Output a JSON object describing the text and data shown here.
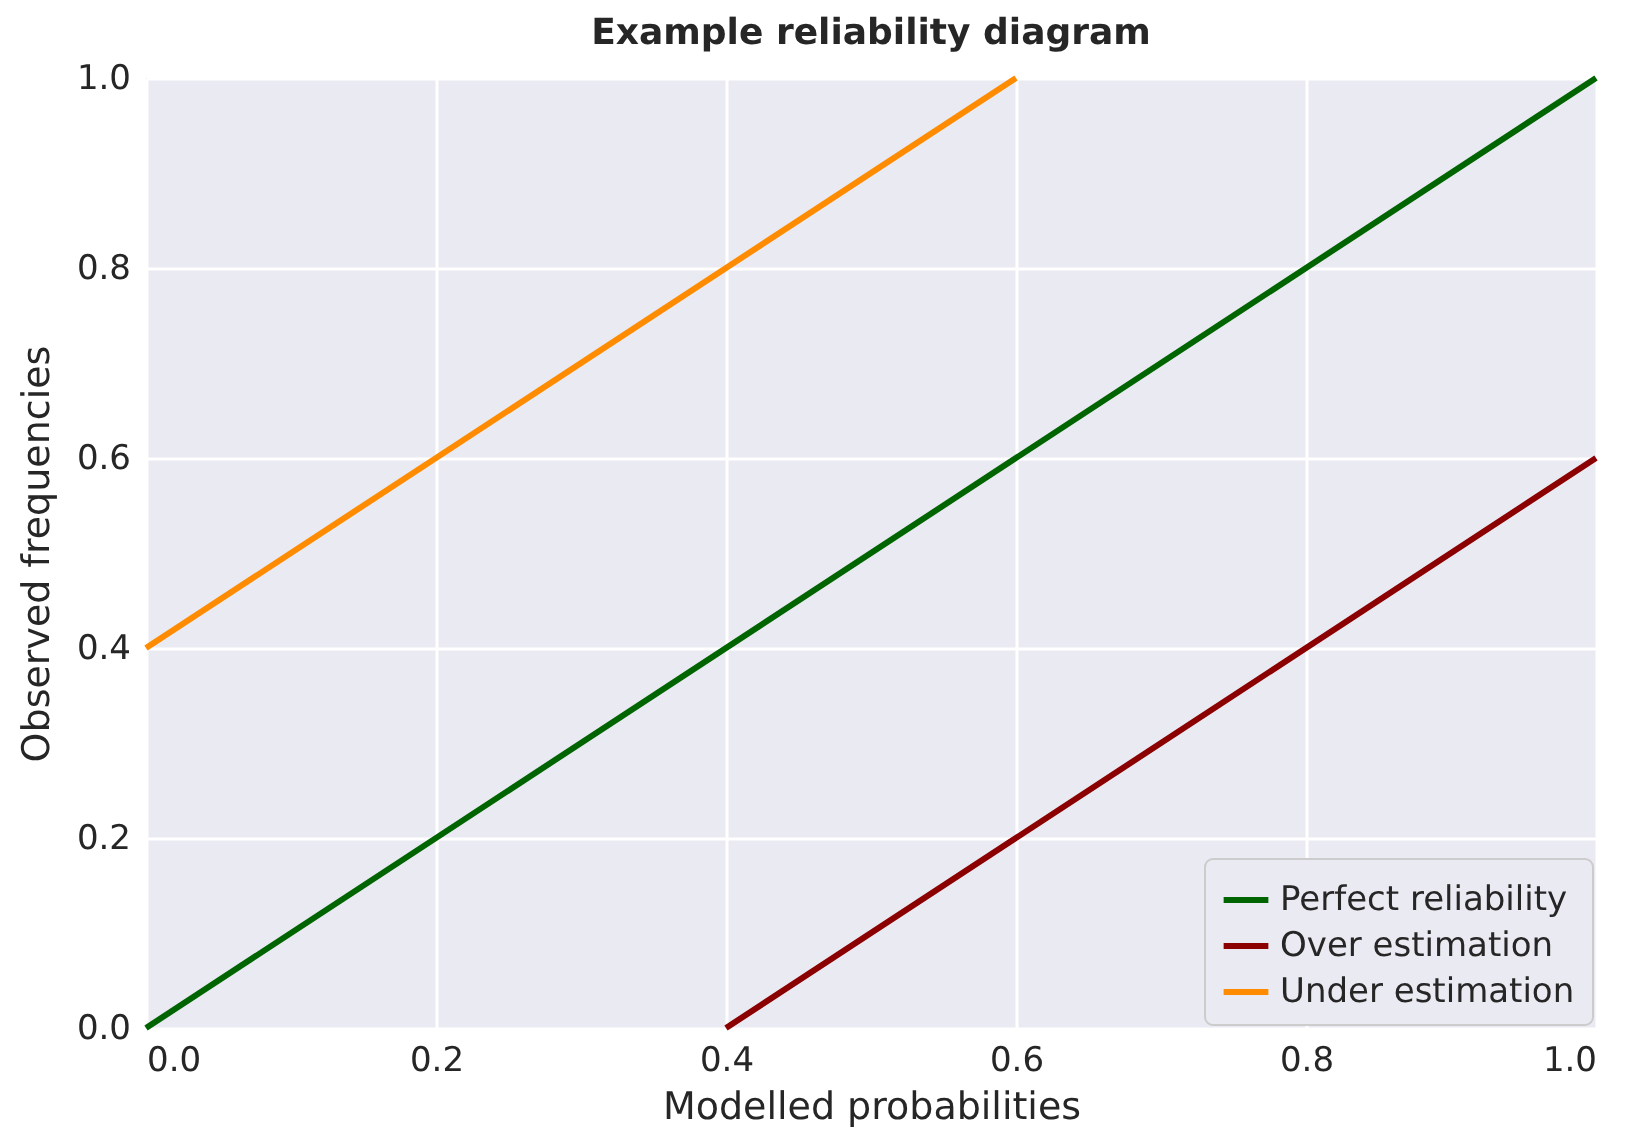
{
  "chart_data": {
    "type": "line",
    "title": "Example reliability diagram",
    "xlabel": "Modelled probabilities",
    "ylabel": "Observed frequencies",
    "series": [
      {
        "name": "Perfect reliability",
        "color": "#006400",
        "x": [
          0,
          1
        ],
        "values": [
          0,
          1
        ]
      },
      {
        "name": "Over estimation",
        "color": "#8b0000",
        "x": [
          0.4,
          1
        ],
        "values": [
          0,
          0.6
        ]
      },
      {
        "name": "Under estimation",
        "color": "#ff8c00",
        "x": [
          0,
          0.6
        ],
        "values": [
          0.4,
          1
        ]
      }
    ],
    "xlim": [
      0,
      1
    ],
    "ylim": [
      0,
      1
    ],
    "xticks": [
      {
        "value": 0,
        "label": "0.0"
      },
      0.2,
      0.4,
      0.6,
      0.8,
      {
        "value": 1,
        "label": "1.0"
      }
    ],
    "yticks": [
      {
        "value": 0,
        "label": "0.0"
      },
      0.2,
      0.4,
      0.6,
      0.8,
      {
        "value": 1,
        "label": "1.0"
      }
    ],
    "grid": true,
    "legend": "bottom right",
    "marker": "none",
    "line_style": "solid"
  }
}
